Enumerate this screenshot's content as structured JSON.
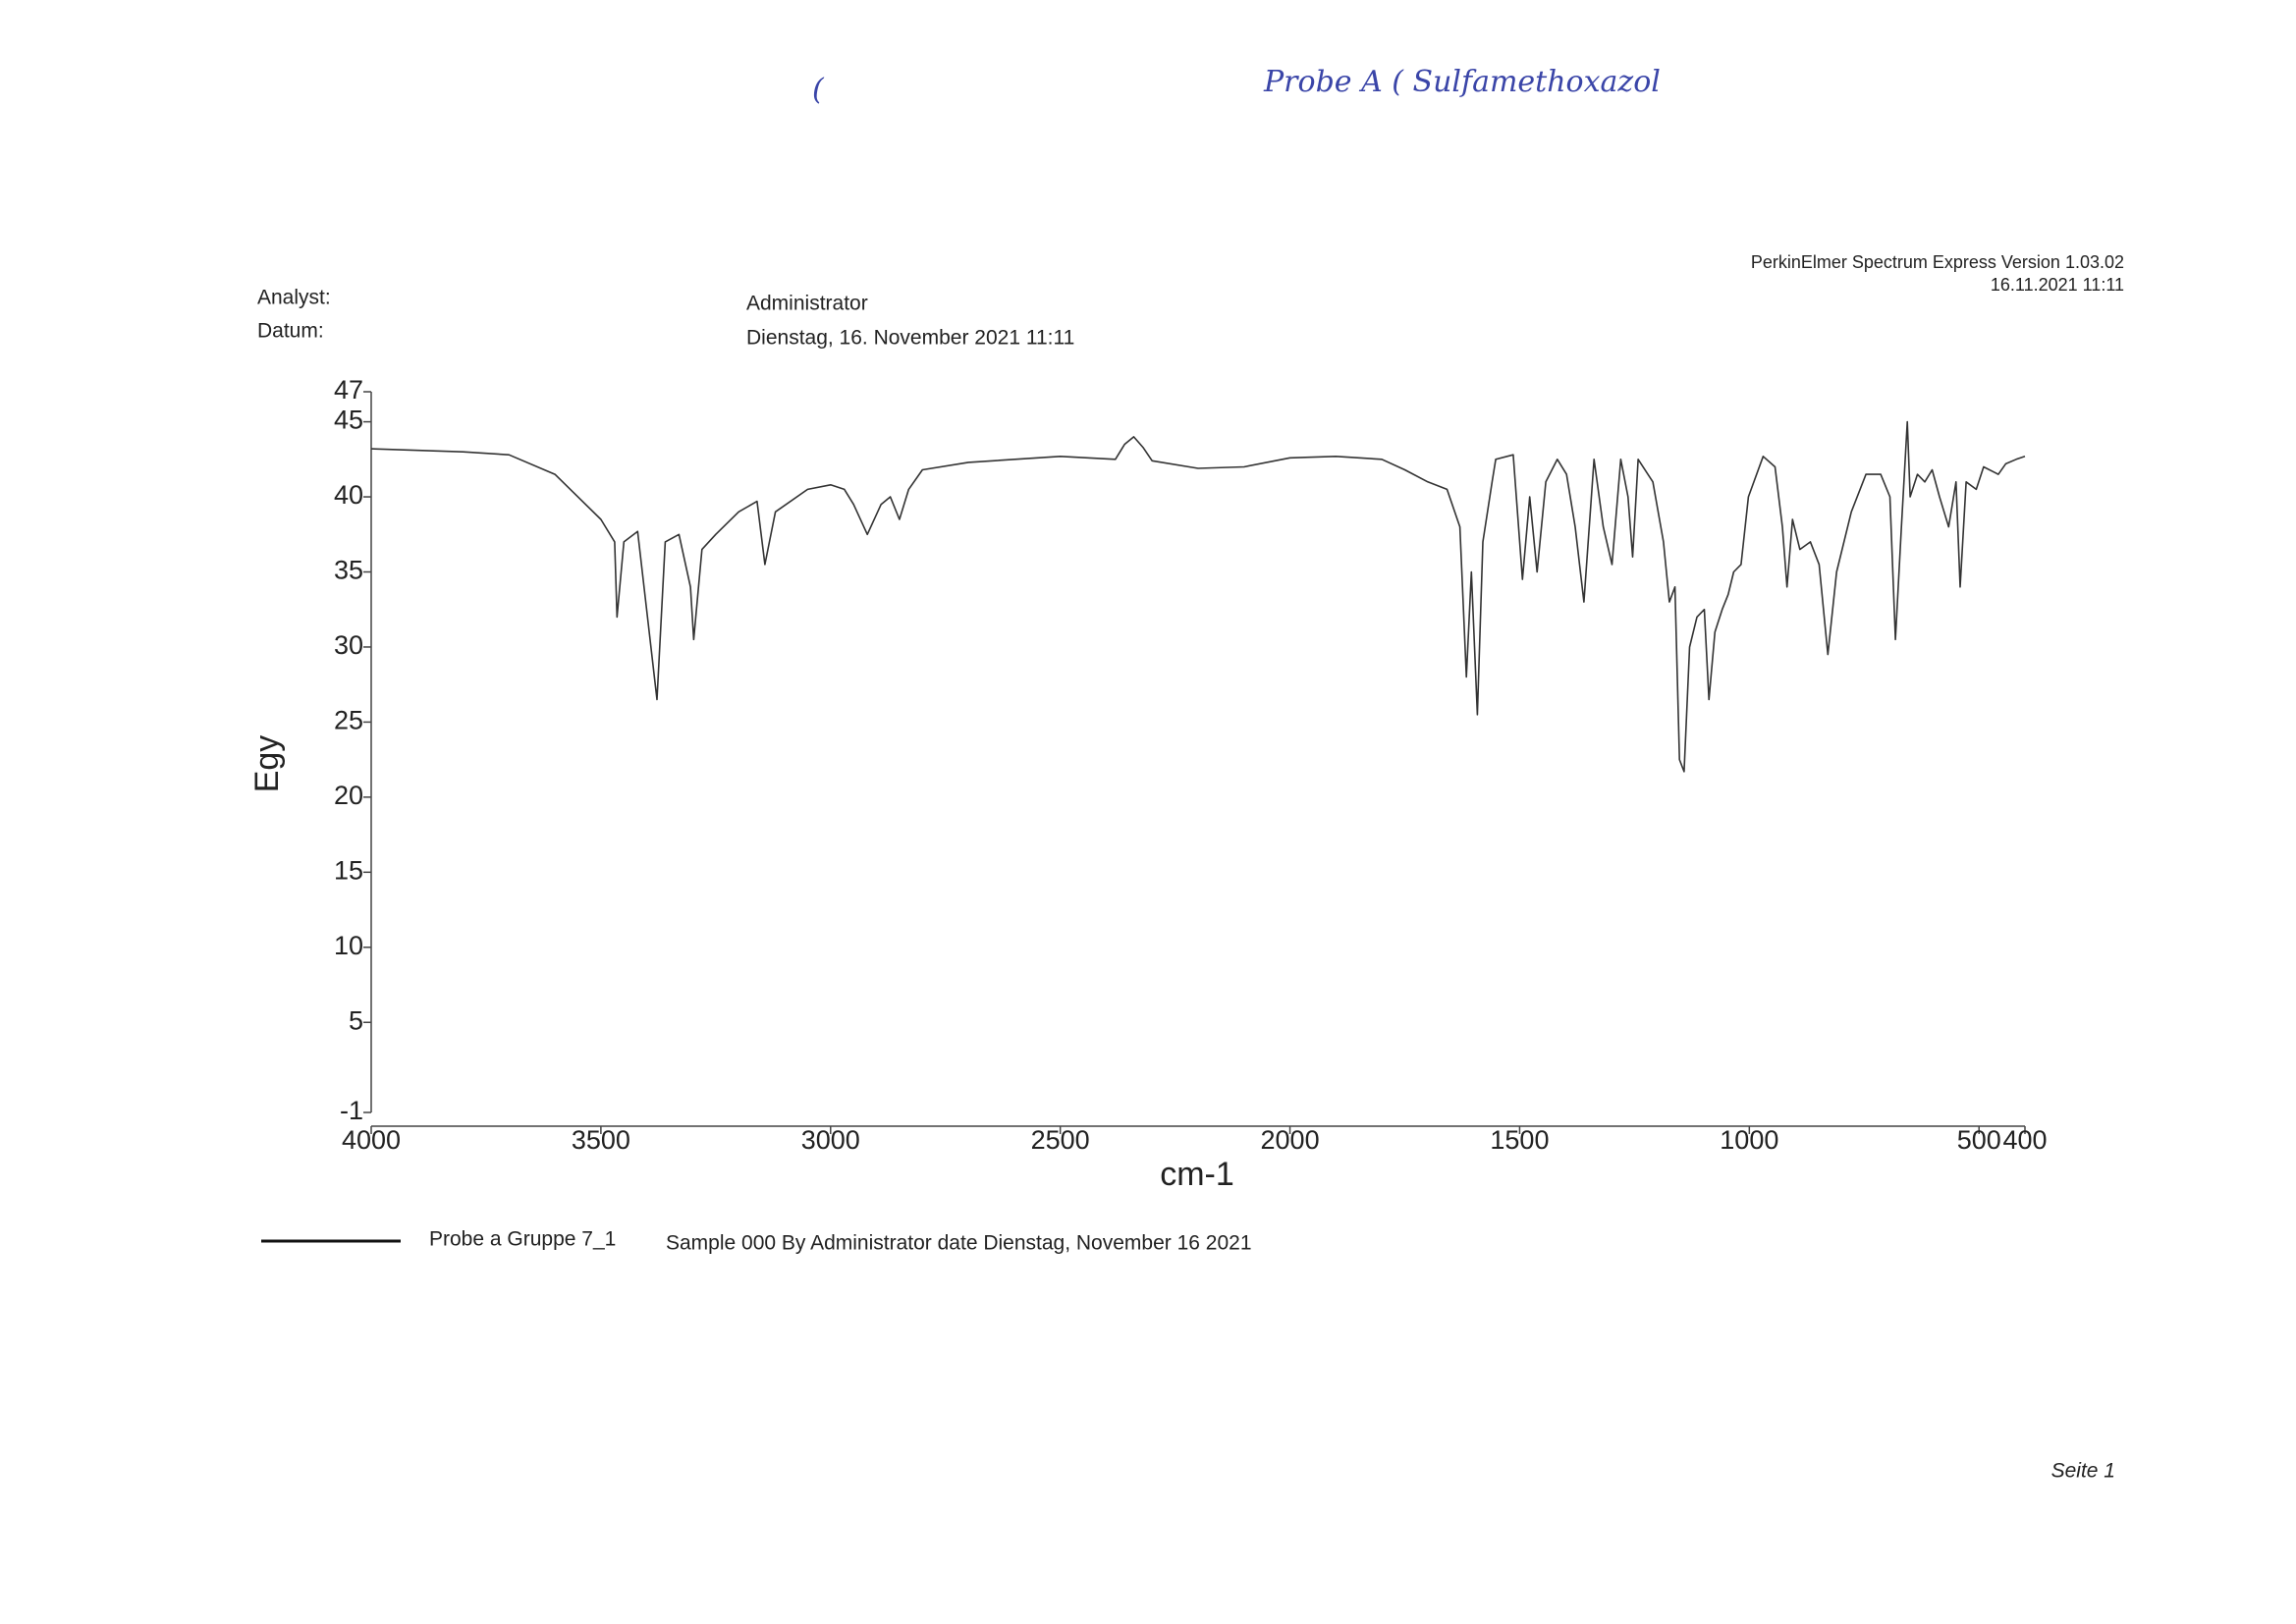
{
  "chart_data": {
    "type": "line",
    "x_label": "cm-1",
    "y_label": "Egy",
    "xlim": [
      4000,
      400
    ],
    "xticks": [
      4000,
      3500,
      3000,
      2500,
      2000,
      1500,
      1000,
      500,
      400
    ],
    "ylim": [
      -1,
      47
    ],
    "yticks": [
      -1,
      5,
      10,
      15,
      20,
      25,
      30,
      35,
      40,
      45,
      47
    ],
    "legend_description": "Sample 000 By Administrator date Dienstag, November 16 2021",
    "x": [
      4000,
      3800,
      3700,
      3600,
      3500,
      3470,
      3465,
      3450,
      3420,
      3378,
      3360,
      3330,
      3305,
      3298,
      3280,
      3250,
      3200,
      3160,
      3143,
      3120,
      3050,
      3000,
      2970,
      2950,
      2920,
      2890,
      2870,
      2850,
      2830,
      2800,
      2700,
      2500,
      2380,
      2360,
      2340,
      2320,
      2300,
      2200,
      2100,
      2000,
      1900,
      1800,
      1750,
      1700,
      1658,
      1630,
      1616,
      1605,
      1592,
      1580,
      1560,
      1552,
      1514,
      1494,
      1478,
      1462,
      1443,
      1418,
      1398,
      1379,
      1360,
      1338,
      1318,
      1299,
      1280,
      1264,
      1254,
      1242,
      1210,
      1187,
      1174,
      1162,
      1152,
      1142,
      1130,
      1114,
      1098,
      1088,
      1075,
      1059,
      1046,
      1034,
      1018,
      1002,
      970,
      944,
      928,
      918,
      906,
      890,
      867,
      848,
      829,
      810,
      778,
      746,
      714,
      694,
      682,
      669,
      656,
      650,
      634,
      618,
      602,
      586,
      566,
      550,
      541,
      528,
      506,
      490,
      458,
      442,
      419,
      400
    ],
    "series": [
      {
        "name": "Probe a Gruppe 7_1",
        "color": "#333333",
        "values": [
          43.2,
          43.0,
          42.8,
          41.5,
          38.5,
          37,
          32,
          37,
          37.7,
          26.5,
          37,
          37.5,
          34,
          30.5,
          36.5,
          37.5,
          39,
          39.7,
          35.5,
          39,
          40.5,
          40.8,
          40.5,
          39.5,
          37.5,
          39.5,
          40,
          38.5,
          40.5,
          41.8,
          42.3,
          42.7,
          42.5,
          43.5,
          44,
          43.3,
          42.4,
          41.9,
          42,
          42.6,
          42.7,
          42.5,
          41.8,
          41,
          40.5,
          38,
          28,
          35,
          25.5,
          37,
          41,
          42.5,
          42.8,
          34.5,
          40,
          35,
          41,
          42.5,
          41.5,
          38,
          33,
          42.5,
          38,
          35.5,
          42.5,
          40,
          36,
          42.5,
          41,
          37,
          33,
          34,
          22.5,
          21.7,
          30,
          32,
          32.5,
          26.5,
          31,
          32.5,
          33.5,
          35,
          35.5,
          40,
          42.7,
          42,
          38,
          34,
          38.5,
          36.5,
          37,
          35.5,
          29.5,
          35,
          39,
          41.5,
          41.5,
          40,
          30.5,
          38,
          45,
          40,
          41.5,
          41,
          41.8,
          40,
          38,
          41,
          34,
          41,
          40.5,
          42,
          41.5,
          42.2,
          42.5,
          42.7
        ]
      }
    ]
  },
  "document": {
    "handwritten_title": "Probe A ( Sulfamethoxazol",
    "handwritten_mark": "(",
    "software": "PerkinElmer Spectrum Express Version 1.03.02",
    "print_date": "16.11.2021 11:11",
    "analyst_label": "Analyst:",
    "date_label": "Datum:",
    "analyst": "Administrator",
    "date": "Dienstag, 16. November 2021 11:11",
    "page": "Seite 1"
  }
}
